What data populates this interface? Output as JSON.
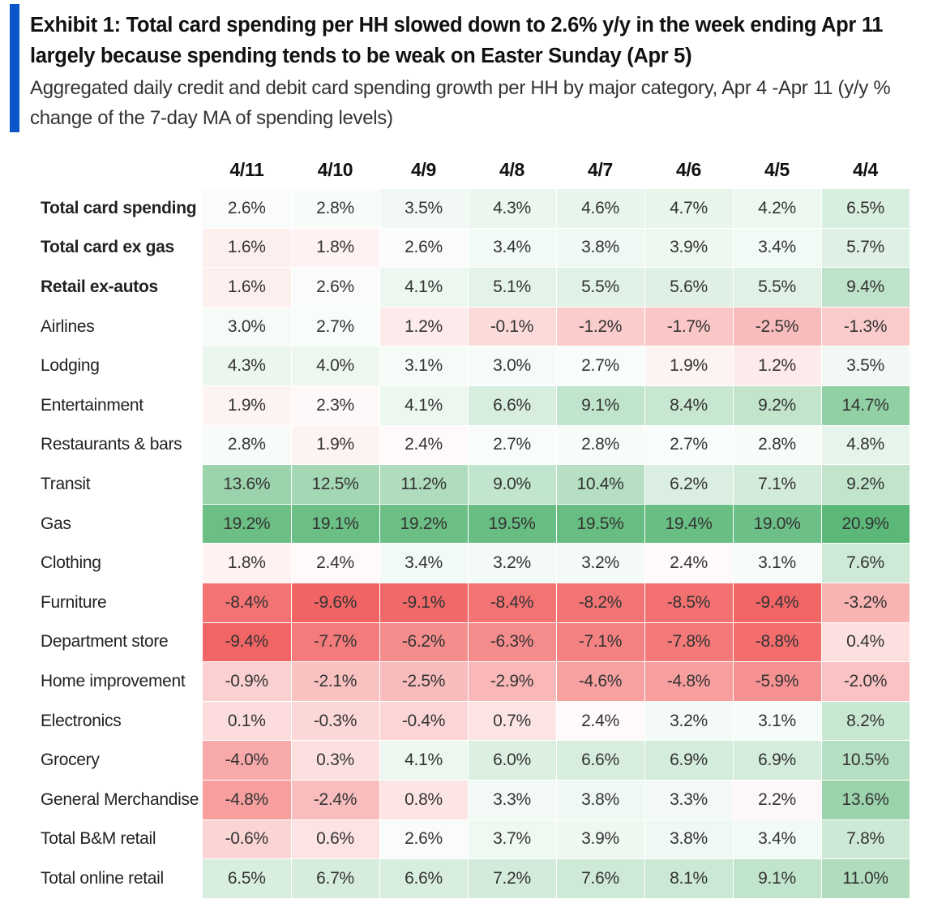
{
  "header": {
    "title": "Exhibit 1: Total card spending per HH slowed down to 2.6% y/y in the week ending Apr 11 largely because spending tends to be weak on Easter Sunday (Apr 5)",
    "subtitle": "Aggregated daily credit and debit card spending growth per HH by major category, Apr 4 -Apr 11 (y/y % change of the 7-day MA of spending levels)"
  },
  "colors": {
    "accent": "#0a55c8",
    "positive": "#5cb878",
    "negative": "#f26464",
    "neutral": "#ffffff"
  },
  "chart_data": {
    "type": "heatmap",
    "title": "Exhibit 1: Total card spending per HH slowed down to 2.6% y/y in the week ending Apr 11 largely because spending tends to be weak on Easter Sunday (Apr 5)",
    "subtitle": "Aggregated daily credit and debit card spending growth per HH by major category, Apr 4 -Apr 11 (y/y % change of the 7-day MA of spending levels)",
    "unit": "%",
    "columns": [
      "4/11",
      "4/10",
      "4/9",
      "4/8",
      "4/7",
      "4/6",
      "4/5",
      "4/4"
    ],
    "rows": [
      {
        "label": "Total card spending",
        "bold": true,
        "values": [
          2.6,
          2.8,
          3.5,
          4.3,
          4.6,
          4.7,
          4.2,
          6.5
        ]
      },
      {
        "label": "Total card ex gas",
        "bold": true,
        "values": [
          1.6,
          1.8,
          2.6,
          3.4,
          3.8,
          3.9,
          3.4,
          5.7
        ]
      },
      {
        "label": "Retail ex-autos",
        "bold": true,
        "values": [
          1.6,
          2.6,
          4.1,
          5.1,
          5.5,
          5.6,
          5.5,
          9.4
        ]
      },
      {
        "label": "Airlines",
        "bold": false,
        "values": [
          3.0,
          2.7,
          1.2,
          -0.1,
          -1.2,
          -1.7,
          -2.5,
          -1.3
        ]
      },
      {
        "label": "Lodging",
        "bold": false,
        "values": [
          4.3,
          4.0,
          3.1,
          3.0,
          2.7,
          1.9,
          1.2,
          3.5
        ]
      },
      {
        "label": "Entertainment",
        "bold": false,
        "values": [
          1.9,
          2.3,
          4.1,
          6.6,
          9.1,
          8.4,
          9.2,
          14.7
        ]
      },
      {
        "label": "Restaurants & bars",
        "bold": false,
        "values": [
          2.8,
          1.9,
          2.4,
          2.7,
          2.8,
          2.7,
          2.8,
          4.8
        ]
      },
      {
        "label": "Transit",
        "bold": false,
        "values": [
          13.6,
          12.5,
          11.2,
          9.0,
          10.4,
          6.2,
          7.1,
          9.2
        ]
      },
      {
        "label": "Gas",
        "bold": false,
        "values": [
          19.2,
          19.1,
          19.2,
          19.5,
          19.5,
          19.4,
          19.0,
          20.9
        ]
      },
      {
        "label": "Clothing",
        "bold": false,
        "values": [
          1.8,
          2.4,
          3.4,
          3.2,
          3.2,
          2.4,
          3.1,
          7.6
        ]
      },
      {
        "label": "Furniture",
        "bold": false,
        "values": [
          -8.4,
          -9.6,
          -9.1,
          -8.4,
          -8.2,
          -8.5,
          -9.4,
          -3.2
        ]
      },
      {
        "label": "Department store",
        "bold": false,
        "values": [
          -9.4,
          -7.7,
          -6.2,
          -6.3,
          -7.1,
          -7.8,
          -8.8,
          0.4
        ]
      },
      {
        "label": "Home improvement",
        "bold": false,
        "values": [
          -0.9,
          -2.1,
          -2.5,
          -2.9,
          -4.6,
          -4.8,
          -5.9,
          -2.0
        ]
      },
      {
        "label": "Electronics",
        "bold": false,
        "values": [
          0.1,
          -0.3,
          -0.4,
          0.7,
          2.4,
          3.2,
          3.1,
          8.2
        ]
      },
      {
        "label": "Grocery",
        "bold": false,
        "values": [
          -4.0,
          0.3,
          4.1,
          6.0,
          6.6,
          6.9,
          6.9,
          10.5
        ]
      },
      {
        "label": "General Merchandise",
        "bold": false,
        "values": [
          -4.8,
          -2.4,
          0.8,
          3.3,
          3.8,
          3.3,
          2.2,
          13.6
        ]
      },
      {
        "label": "Total B&M retail",
        "bold": false,
        "values": [
          -0.6,
          0.6,
          2.6,
          3.7,
          3.9,
          3.8,
          3.4,
          7.8
        ]
      },
      {
        "label": "Total online retail",
        "bold": false,
        "values": [
          6.5,
          6.7,
          6.6,
          7.2,
          7.6,
          8.1,
          9.1,
          11.0
        ]
      }
    ]
  }
}
